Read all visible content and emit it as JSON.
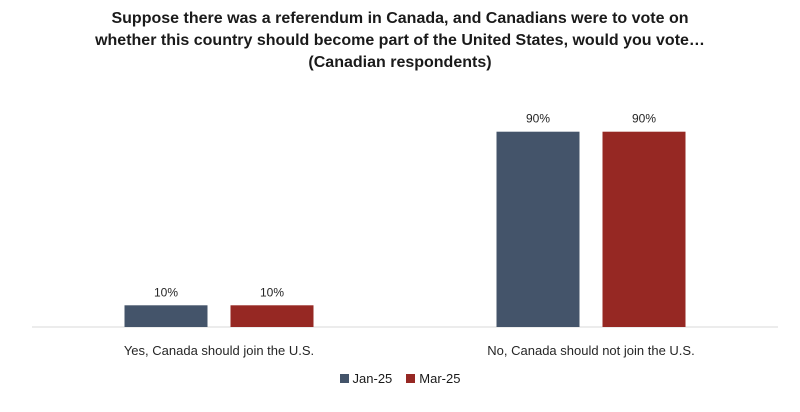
{
  "chart_data": {
    "type": "bar",
    "title_lines": [
      "Suppose there was a referendum in Canada, and Canadians were to vote on",
      "whether this country should become part of the United States, would you vote…",
      "(Canadian respondents)"
    ],
    "categories": [
      "Yes, Canada should join the U.S.",
      "No, Canada should not join the U.S."
    ],
    "series": [
      {
        "name": "Jan-25",
        "values": [
          10,
          90
        ],
        "labels": [
          "10%",
          "90%"
        ],
        "color": "#44546a"
      },
      {
        "name": "Mar-25",
        "values": [
          10,
          90
        ],
        "labels": [
          "10%",
          "90%"
        ],
        "color": "#962823"
      }
    ],
    "ylim": [
      0,
      100
    ],
    "grid": false,
    "legend_position": "bottom"
  }
}
